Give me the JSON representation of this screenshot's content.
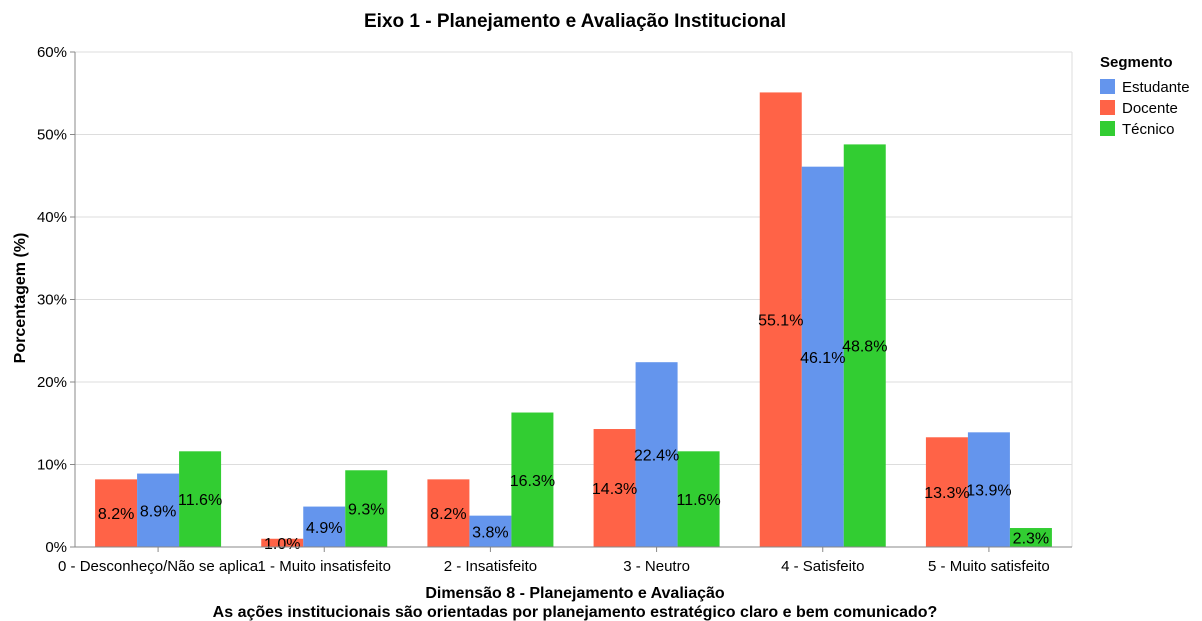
{
  "chart_data": {
    "type": "bar",
    "title": "Eixo 1 - Planejamento e Avaliação Institucional",
    "xlabel": "Dimensão 8 - Planejamento e Avaliação",
    "xlabel_sub": "As ações institucionais são orientadas por planejamento estratégico claro e bem comunicado?",
    "ylabel": "Porcentagem (%)",
    "ylim": [
      0,
      60
    ],
    "yticks": [
      "0%",
      "10%",
      "20%",
      "30%",
      "40%",
      "50%",
      "60%"
    ],
    "yticks_values": [
      0,
      10,
      20,
      30,
      40,
      50,
      60
    ],
    "grid": true,
    "categories": [
      "0 - Desconheço/Não se aplica",
      "1 - Muito insatisfeito",
      "2 - Insatisfeito",
      "3 - Neutro",
      "4 - Satisfeito",
      "5 - Muito satisfeito"
    ],
    "legend": {
      "title": "Segmento",
      "placement": "top-right"
    },
    "series": [
      {
        "name": "Docente",
        "color": "#ff6347",
        "values": [
          8.2,
          1.0,
          8.2,
          14.3,
          55.1,
          13.3
        ],
        "labels": [
          "8.2%",
          "1.0%",
          "8.2%",
          "14.3%",
          "55.1%",
          "13.3%"
        ]
      },
      {
        "name": "Estudante",
        "color": "#6495ed",
        "values": [
          8.9,
          4.9,
          3.8,
          22.4,
          46.1,
          13.9
        ],
        "labels": [
          "8.9%",
          "4.9%",
          "3.8%",
          "22.4%",
          "46.1%",
          "13.9%"
        ]
      },
      {
        "name": "Técnico",
        "color": "#32cd32",
        "values": [
          11.6,
          9.3,
          16.3,
          11.6,
          48.8,
          2.3
        ],
        "labels": [
          "11.6%",
          "9.3%",
          "16.3%",
          "11.6%",
          "48.8%",
          "2.3%"
        ]
      }
    ],
    "legend_order": [
      "Estudante",
      "Docente",
      "Técnico"
    ]
  }
}
